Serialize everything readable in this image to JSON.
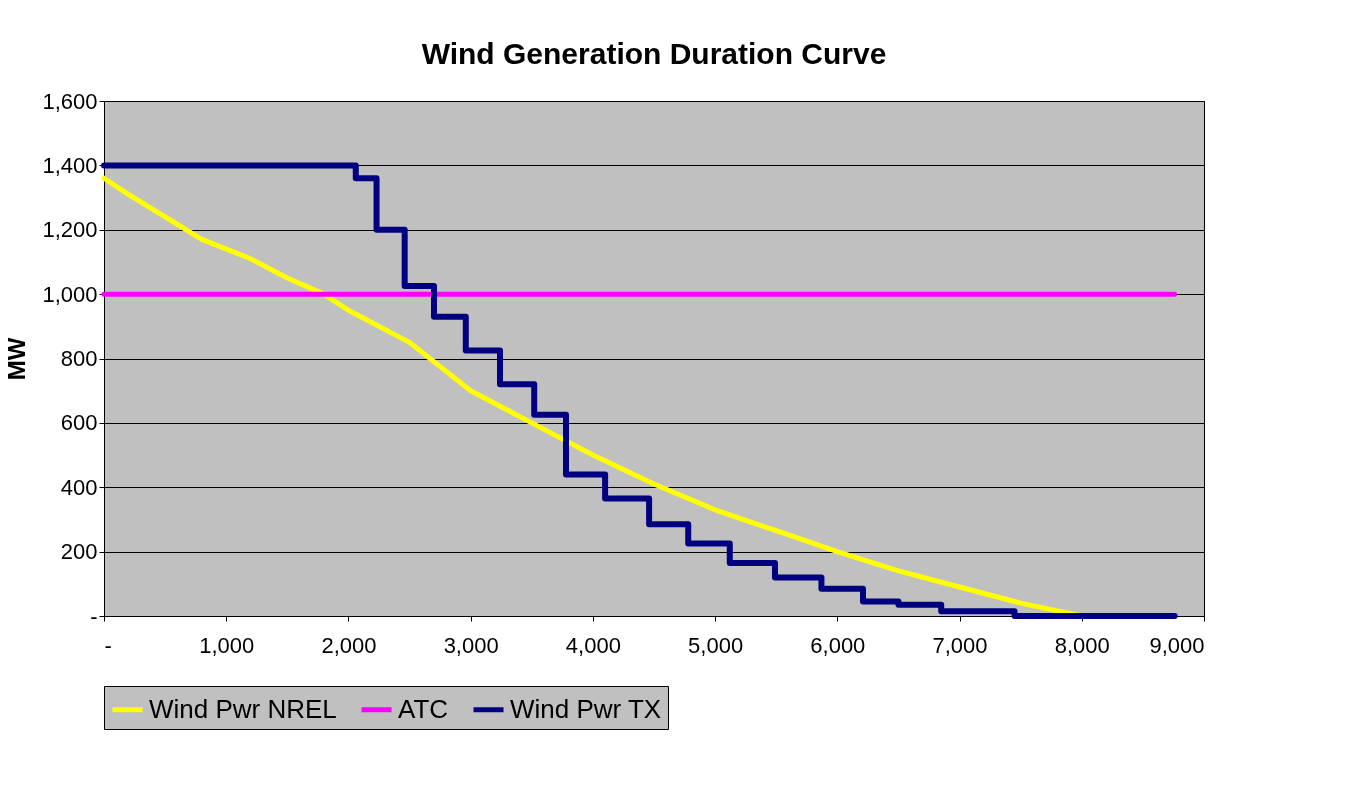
{
  "chart_data": {
    "type": "line",
    "title": "Wind Generation Duration Curve",
    "ylabel": "MW",
    "xlim": [
      0,
      9000
    ],
    "ylim": [
      0,
      1600
    ],
    "xticks": [
      {
        "value": 0,
        "label": "-"
      },
      {
        "value": 1000,
        "label": "1,000"
      },
      {
        "value": 2000,
        "label": "2,000"
      },
      {
        "value": 3000,
        "label": "3,000"
      },
      {
        "value": 4000,
        "label": "4,000"
      },
      {
        "value": 5000,
        "label": "5,000"
      },
      {
        "value": 6000,
        "label": "6,000"
      },
      {
        "value": 7000,
        "label": "7,000"
      },
      {
        "value": 8000,
        "label": "8,000"
      },
      {
        "value": 9000,
        "label": "9,000"
      }
    ],
    "yticks": [
      {
        "value": 0,
        "label": "-"
      },
      {
        "value": 200,
        "label": "200"
      },
      {
        "value": 400,
        "label": "400"
      },
      {
        "value": 600,
        "label": "600"
      },
      {
        "value": 800,
        "label": "800"
      },
      {
        "value": 1000,
        "label": "1,000"
      },
      {
        "value": 1200,
        "label": "1,200"
      },
      {
        "value": 1400,
        "label": "1,400"
      },
      {
        "value": 1600,
        "label": "1,600"
      }
    ],
    "grid": "y",
    "legend": "bottom",
    "line_style": "solid",
    "marker": "none",
    "series": [
      {
        "name": "Wind Pwr NREL",
        "color": "#ffff00",
        "x": [
          0,
          200,
          500,
          800,
          1200,
          1500,
          1800,
          2000,
          2500,
          3000,
          3500,
          4000,
          4500,
          5000,
          5500,
          6000,
          6500,
          7000,
          7500,
          8000,
          8760
        ],
        "values": [
          1360,
          1310,
          1240,
          1170,
          1110,
          1050,
          1000,
          950,
          850,
          700,
          600,
          500,
          410,
          330,
          265,
          200,
          140,
          90,
          40,
          0,
          0
        ]
      },
      {
        "name": "ATC",
        "color": "#ff00ff",
        "x": [
          0,
          8760
        ],
        "values": [
          1000,
          1000
        ]
      },
      {
        "name": "Wind Pwr TX",
        "color": "#000080",
        "type": "step",
        "x": [
          0,
          2060,
          2230,
          2460,
          2700,
          2960,
          3240,
          3520,
          3780,
          4100,
          4460,
          4780,
          5120,
          5490,
          5870,
          6210,
          6500,
          6850,
          7450,
          8760
        ],
        "values": [
          1400,
          1360,
          1200,
          1025,
          930,
          825,
          720,
          625,
          440,
          365,
          285,
          225,
          165,
          120,
          85,
          45,
          35,
          15,
          0,
          0
        ]
      }
    ]
  }
}
